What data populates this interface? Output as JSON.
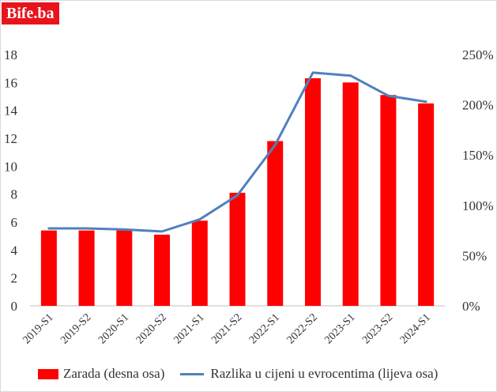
{
  "brand": {
    "label": "Bife.ba",
    "color": "#e8141c"
  },
  "chart_data": {
    "type": "bar",
    "categories": [
      "2019-S1",
      "2019-S2",
      "2020-S1",
      "2020-S2",
      "2021-S1",
      "2021-S2",
      "2022-S1",
      "2022-S2",
      "2023-S1",
      "2023-S2",
      "2024-S1"
    ],
    "series": [
      {
        "name": "Zarada (desna osa)",
        "kind": "bar",
        "axis": "left",
        "color": "#ff0000",
        "values": [
          5.4,
          5.4,
          5.4,
          5.1,
          6.1,
          8.1,
          11.8,
          16.3,
          16.0,
          15.1,
          14.5
        ]
      },
      {
        "name": "Razlika u cijeni u evrocentima  (lijeva osa)",
        "kind": "line",
        "axis": "right",
        "color": "#4f81bd",
        "values": [
          77,
          77,
          76,
          74,
          86,
          110,
          160,
          232,
          229,
          209,
          203
        ]
      }
    ],
    "y_left": {
      "min": 0,
      "max": 18,
      "ticks": [
        "0",
        "2",
        "4",
        "6",
        "8",
        "10",
        "12",
        "14",
        "16",
        "18"
      ]
    },
    "y_right": {
      "min": 0,
      "max": 250,
      "ticks": [
        "0%",
        "50%",
        "100%",
        "150%",
        "200%",
        "250%"
      ]
    },
    "grid": false,
    "legend": "bottom"
  }
}
